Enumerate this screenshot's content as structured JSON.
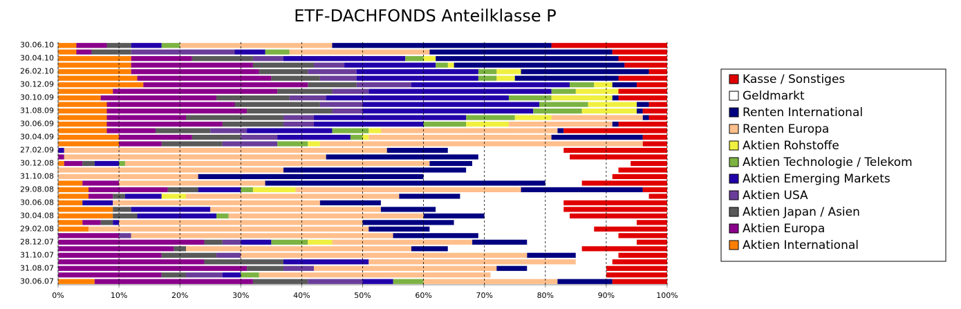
{
  "chart_data": {
    "type": "stacked_barh",
    "title": "ETF-DACHFONDS Anteilklasse P",
    "categories": [
      "30.06.10",
      null,
      "30.04.10",
      null,
      "26.02.10",
      null,
      "30.12.09",
      null,
      "30.10.09",
      null,
      "31.08.09",
      null,
      "30.06.09",
      null,
      "30.04.09",
      null,
      "27.02.09",
      null,
      "30.12.08",
      null,
      "31.10.08",
      null,
      "29.08.08",
      null,
      "30.06.08",
      null,
      "30.04.08",
      null,
      "29.02.08",
      null,
      "28.12.07",
      null,
      "31.10.07",
      null,
      "31.08.07",
      null,
      "30.06.07"
    ],
    "series": [
      {
        "name": "Aktien International",
        "color": "#ff8000",
        "values": [
          3,
          3,
          12,
          12,
          12,
          13,
          14,
          9,
          7,
          8,
          8,
          8,
          8,
          8,
          10,
          10,
          0,
          0,
          1,
          0,
          0,
          4,
          5,
          5,
          4,
          9,
          9,
          4,
          5,
          0,
          0,
          0,
          0,
          0,
          0,
          0,
          6
        ]
      },
      {
        "name": "Aktien Europa",
        "color": "#8b008b",
        "values": [
          5,
          2.5,
          10,
          20,
          21,
          22,
          27,
          27,
          19,
          21,
          23,
          13,
          19,
          8,
          12,
          7,
          0,
          1,
          3,
          0,
          0,
          6,
          13,
          4,
          0,
          0,
          0,
          3,
          0,
          10,
          24,
          19,
          17,
          24,
          31,
          17,
          26
        ]
      },
      {
        "name": "Aktien Japan / Asien",
        "color": "#595959",
        "values": [
          4,
          6.5,
          10,
          10,
          8,
          8,
          8,
          9,
          12,
          14,
          14,
          16,
          10,
          9,
          8,
          10,
          0,
          0,
          2,
          0,
          0,
          0,
          5,
          2,
          0,
          3,
          4,
          2,
          0,
          0,
          3,
          2,
          9,
          13,
          6,
          4,
          9
        ]
      },
      {
        "name": "Aktien USA",
        "color": "#6a3d9a",
        "values": [
          0,
          17,
          5,
          5,
          8,
          6,
          9,
          6,
          6,
          7,
          5,
          5,
          5,
          6,
          6,
          9,
          0,
          0,
          0,
          0,
          0,
          0,
          0,
          0,
          0,
          0,
          0,
          0,
          0,
          2,
          3,
          0,
          4,
          0,
          5,
          6,
          9
        ]
      },
      {
        "name": "Aktien Emerging Markets",
        "color": "#2200aa",
        "values": [
          5,
          5,
          20,
          15,
          20,
          20,
          26,
          30,
          30,
          29,
          28,
          25,
          18,
          14,
          12,
          0,
          1,
          0,
          4,
          0,
          0,
          0,
          7,
          6,
          5,
          13,
          13,
          1,
          0,
          0,
          5,
          0,
          0,
          14,
          0,
          3,
          5
        ]
      },
      {
        "name": "Aktien Technologie / Telekom",
        "color": "#7cb342",
        "values": [
          3,
          4,
          3,
          2,
          3,
          3,
          4,
          4,
          7,
          8,
          8,
          8,
          7,
          6,
          2,
          5,
          0,
          0,
          1,
          0,
          0,
          0,
          2,
          0,
          0,
          0,
          2,
          0,
          0,
          0,
          6,
          0,
          0,
          0,
          0,
          3,
          5
        ]
      },
      {
        "name": "Aktien Rohstoffe",
        "color": "#f0f040",
        "values": [
          0,
          0,
          2,
          1,
          4,
          3,
          3,
          7,
          10,
          8,
          9,
          6,
          7,
          2,
          1,
          2,
          0,
          0,
          0,
          0,
          0,
          0,
          7,
          4,
          0,
          0,
          0,
          0,
          0,
          0,
          4,
          0,
          0,
          0,
          0,
          0,
          0
        ]
      },
      {
        "name": "Renten Europa",
        "color": "#ffbf8c",
        "values": [
          25,
          23,
          0,
          0,
          0,
          0,
          0,
          0,
          0,
          0,
          0,
          15,
          17,
          29,
          30,
          53,
          53,
          43,
          50,
          37,
          23,
          24,
          37,
          35,
          34,
          28,
          32,
          40,
          46,
          43,
          23,
          37,
          47,
          34,
          30,
          38,
          22
        ]
      },
      {
        "name": "Renten International",
        "color": "#000080",
        "values": [
          36,
          30,
          30,
          28,
          21,
          17,
          4,
          0,
          1,
          2,
          1,
          1,
          1,
          1,
          15,
          0,
          10,
          25,
          7,
          30,
          37,
          46,
          20,
          10,
          10,
          9,
          10,
          15,
          10,
          14,
          9,
          6,
          8,
          0,
          5,
          0,
          9
        ]
      },
      {
        "name": "Geldmarkt",
        "color": "#ffffff",
        "values": [
          0,
          0,
          0,
          0,
          0,
          0,
          0,
          0,
          0,
          0,
          0,
          0,
          0,
          0,
          0,
          0,
          19,
          15,
          26,
          25,
          31,
          6,
          0,
          31,
          30,
          21,
          14,
          30,
          27,
          23,
          18,
          22,
          7,
          6,
          13,
          19,
          0
        ]
      },
      {
        "name": "Kasse / Sonstiges",
        "color": "#e00000",
        "values": [
          19,
          9,
          8,
          7,
          3,
          8,
          5,
          8,
          8,
          3,
          4,
          3,
          8,
          17,
          4,
          4,
          17,
          16,
          6,
          8,
          9,
          14,
          4,
          3,
          17,
          17,
          16,
          5,
          12,
          8,
          5,
          14,
          8,
          9,
          10,
          10,
          9
        ]
      }
    ],
    "xlim": [
      0,
      100
    ],
    "xticks": [
      {
        "value": 0,
        "label": "0%"
      },
      {
        "value": 10,
        "label": "10%"
      },
      {
        "value": 20,
        "label": "20%"
      },
      {
        "value": 30,
        "label": "30%"
      },
      {
        "value": 40,
        "label": "40%"
      },
      {
        "value": 50,
        "label": "50%"
      },
      {
        "value": 60,
        "label": "60%"
      },
      {
        "value": 70,
        "label": "70%"
      },
      {
        "value": 80,
        "label": "80%"
      },
      {
        "value": 90,
        "label": "90%"
      },
      {
        "value": 100,
        "label": "100%"
      }
    ],
    "grid": true,
    "legend": "right"
  }
}
